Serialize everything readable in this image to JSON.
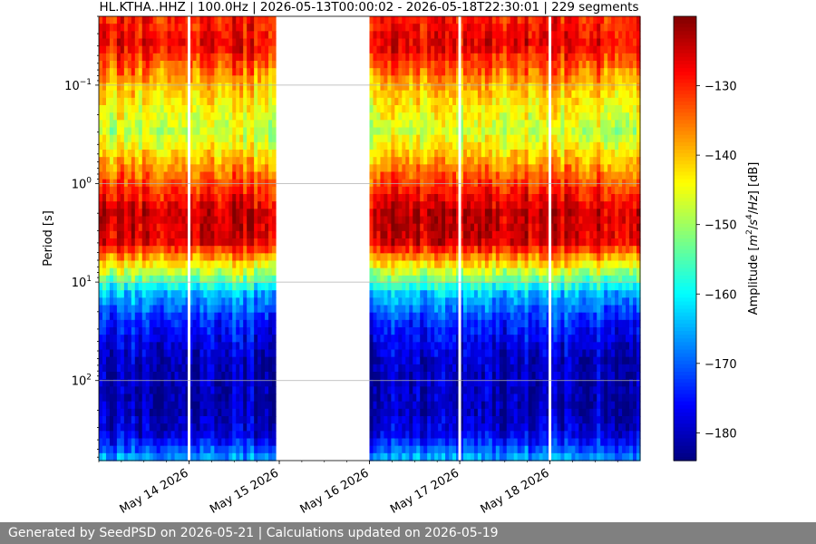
{
  "chart_data": {
    "type": "heatmap",
    "title": "HL.KTHA..HHZ | 100.0Hz | 2026-05-13T00:00:02 - 2026-05-18T22:30:01 | 229 segments",
    "xlabel": "",
    "ylabel": "Period [s]",
    "colorbar_label_parts": [
      "Amplitude [",
      "m",
      "2",
      "/",
      "s",
      "4",
      "/",
      "Hz",
      "] [dB]"
    ],
    "colormap": "jet",
    "x_range": [
      "2026-05-13T00:00",
      "2026-05-18T23:59"
    ],
    "y_range_s": [
      0.02,
      650
    ],
    "y_log": true,
    "grid": true,
    "x_ticks": [
      {
        "date": "2026-05-14",
        "label": "May 14 2026"
      },
      {
        "date": "2026-05-15",
        "label": "May 15 2026"
      },
      {
        "date": "2026-05-16",
        "label": "May 16 2026"
      },
      {
        "date": "2026-05-17",
        "label": "May 17 2026"
      },
      {
        "date": "2026-05-18",
        "label": "May 18 2026"
      }
    ],
    "y_ticks": [
      {
        "value": 0.1,
        "base": "10",
        "exp": "−1"
      },
      {
        "value": 1,
        "base": "10",
        "exp": "0"
      },
      {
        "value": 10,
        "base": "10",
        "exp": "1"
      },
      {
        "value": 100,
        "base": "10",
        "exp": "2"
      }
    ],
    "colorbar_range_db": [
      -184,
      -120
    ],
    "colorbar_ticks": [
      -130,
      -140,
      -150,
      -160,
      -170,
      -180
    ],
    "data_coverage": [
      {
        "start": "2026-05-13T00:00",
        "end": "2026-05-14T23:00"
      },
      {
        "start": "2026-05-16T00:00",
        "end": "2026-05-18T23:59"
      }
    ],
    "gap_lines": [
      "2026-05-14T00:00",
      "2026-05-17T00:00",
      "2026-05-18T00:00"
    ],
    "spectral_profile": [
      {
        "period_s": 0.02,
        "db": -130
      },
      {
        "period_s": 0.04,
        "db": -127
      },
      {
        "period_s": 0.1,
        "db": -140
      },
      {
        "period_s": 0.3,
        "db": -148
      },
      {
        "period_s": 0.8,
        "db": -135
      },
      {
        "period_s": 2,
        "db": -124
      },
      {
        "period_s": 4,
        "db": -126
      },
      {
        "period_s": 6,
        "db": -140
      },
      {
        "period_s": 9,
        "db": -152
      },
      {
        "period_s": 13,
        "db": -164
      },
      {
        "period_s": 25,
        "db": -174
      },
      {
        "period_s": 60,
        "db": -180
      },
      {
        "period_s": 200,
        "db": -181
      },
      {
        "period_s": 350,
        "db": -178
      },
      {
        "period_s": 650,
        "db": -165
      }
    ]
  },
  "footer": {
    "text": "Generated by SeedPSD on 2026-05-21 | Calculations updated on 2026-05-19"
  }
}
